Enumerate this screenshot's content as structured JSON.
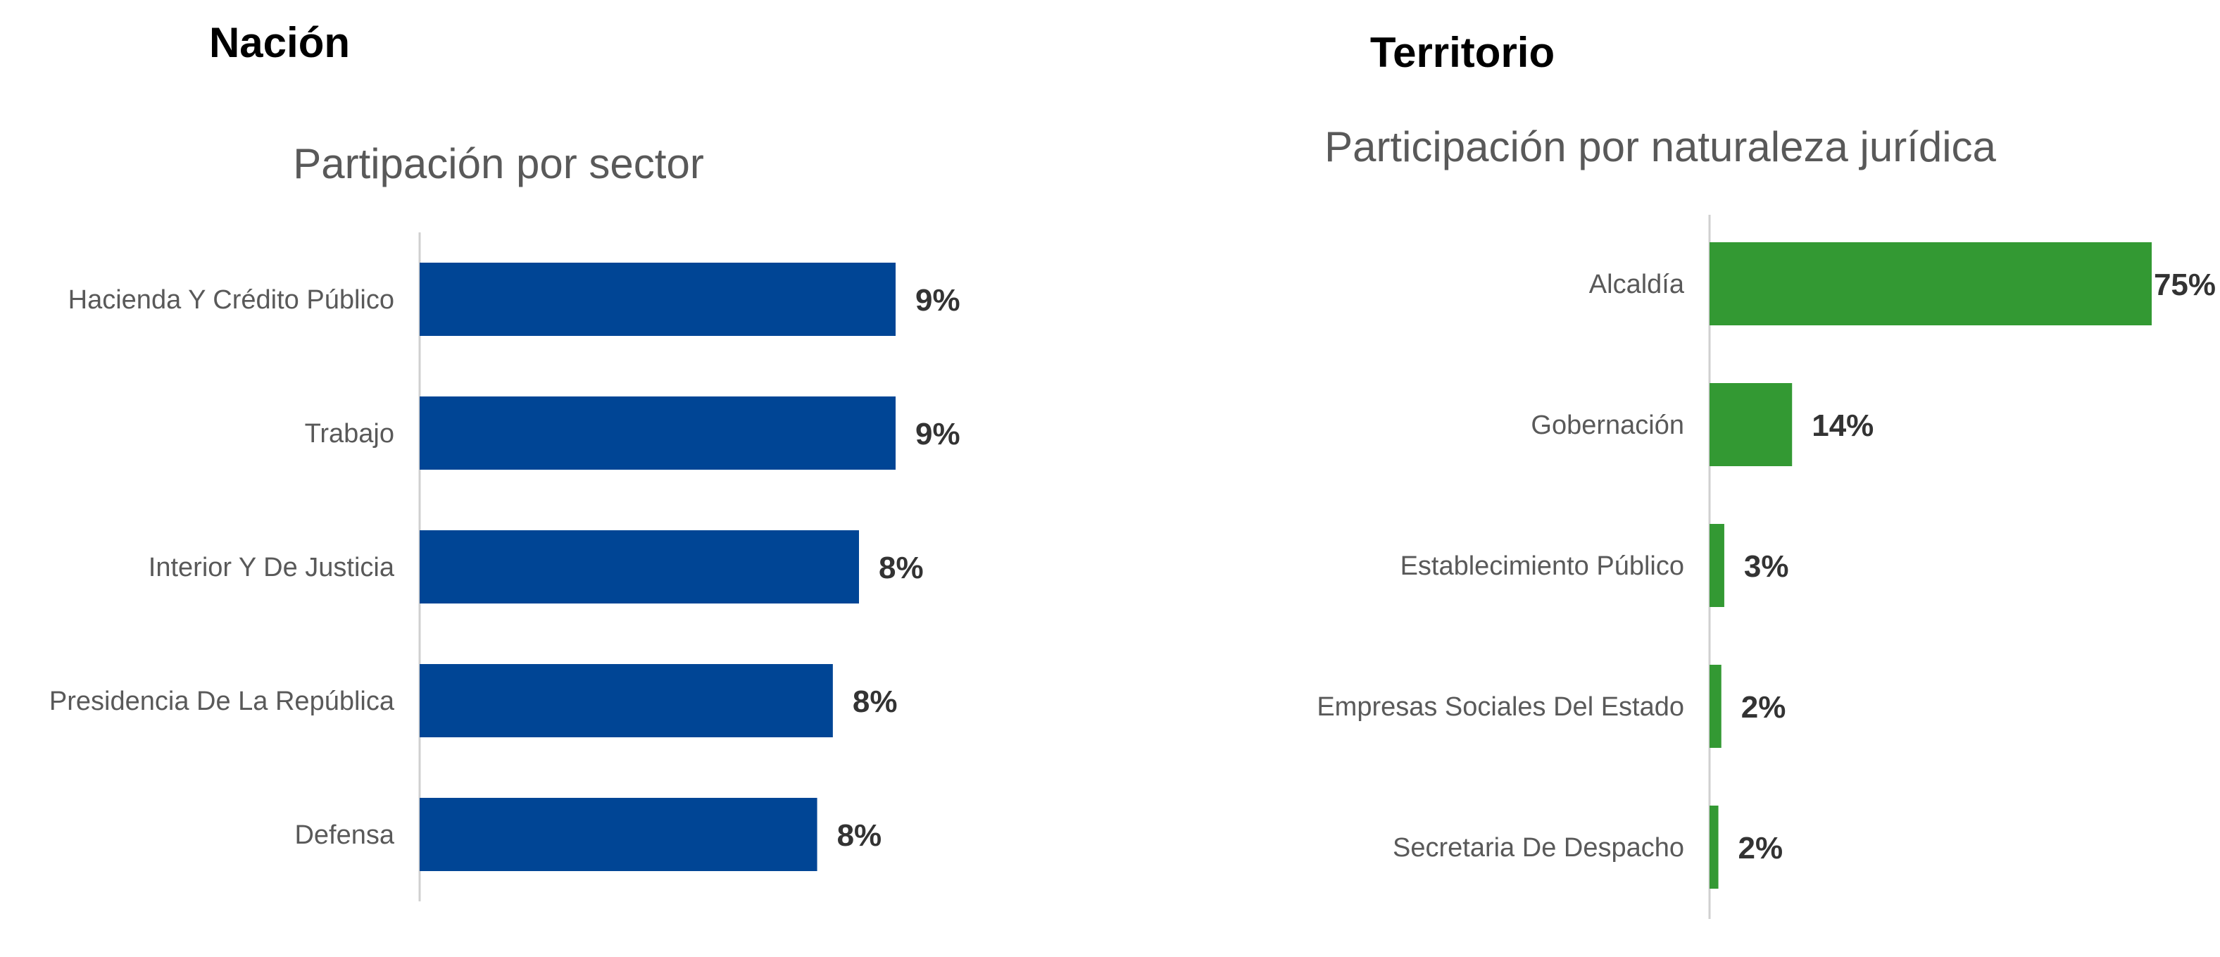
{
  "chart_data": [
    {
      "type": "bar",
      "orientation": "horizontal",
      "heading": "Nación",
      "title": "Partipación por sector",
      "categories": [
        "Hacienda Y Crédito Público",
        "Trabajo",
        "Interior Y De Justicia",
        "Presidencia De La República",
        "Defensa"
      ],
      "values": [
        9.1,
        9.1,
        8.4,
        7.9,
        7.6
      ],
      "value_labels": [
        "9%",
        "9%",
        "8%",
        "8%",
        "8%"
      ],
      "xlim": [
        0,
        17.5
      ],
      "grid": false,
      "legend": "none",
      "color": "#004595"
    },
    {
      "type": "bar",
      "orientation": "horizontal",
      "heading": "Territorio",
      "title": "Participación por naturaleza jurídica",
      "categories": [
        "Alcaldía",
        "Gobernación",
        "Establecimiento Público",
        "Empresas Sociales Del Estado",
        "Secretaria De Despacho"
      ],
      "values": [
        75,
        14,
        2.5,
        2,
        1.5
      ],
      "value_labels": [
        "75%",
        "14%",
        "3%",
        "2%",
        "2%"
      ],
      "xlim": [
        0,
        75
      ],
      "grid": false,
      "legend": "none",
      "color": "#339933"
    }
  ]
}
